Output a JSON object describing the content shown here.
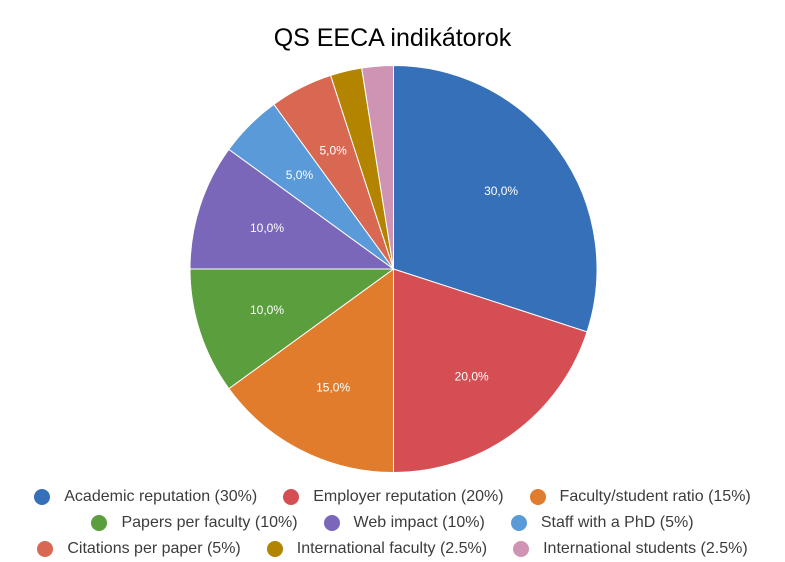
{
  "chart_data": {
    "type": "pie",
    "title": "QS EECA indikátorok",
    "slices": [
      {
        "label": "Academic reputation (30%)",
        "value": 30,
        "display": "30,0%",
        "color": "#3570b8"
      },
      {
        "label": "Employer reputation (20%)",
        "value": 20,
        "display": "20,0%",
        "color": "#d54e54"
      },
      {
        "label": "Faculty/student ratio (15%)",
        "value": 15,
        "display": "15,0%",
        "color": "#e07c2c"
      },
      {
        "label": "Papers per faculty (10%)",
        "value": 10,
        "display": "10,0%",
        "color": "#5a9e3e"
      },
      {
        "label": "Web impact (10%)",
        "value": 10,
        "display": "10,0%",
        "color": "#7a67b9"
      },
      {
        "label": "Staff with a PhD (5%)",
        "value": 5,
        "display": "5,0%",
        "color": "#5b9ad8"
      },
      {
        "label": "Citations per paper (5%)",
        "value": 5,
        "display": "5,0%",
        "color": "#d96852"
      },
      {
        "label": "International faculty (2.5%)",
        "value": 2.5,
        "display": "",
        "color": "#b28400"
      },
      {
        "label": "International students (2.5%)",
        "value": 2.5,
        "display": "",
        "color": "#cf93b3"
      }
    ],
    "legend_position": "bottom"
  }
}
